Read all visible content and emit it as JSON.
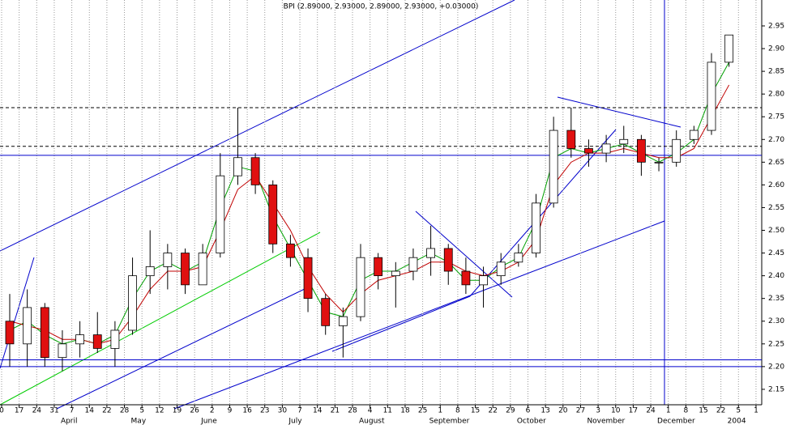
{
  "chart_data": {
    "type": "candlestick",
    "title": "BPI (2.89000, 2.93000, 2.89000, 2.93000, +0.03000)",
    "categories": [
      "0",
      "17",
      "24",
      "31",
      "7",
      "14",
      "22",
      "28",
      "5",
      "12",
      "19",
      "26",
      "2",
      "9",
      "16",
      "23",
      "30",
      "7",
      "14",
      "21",
      "28",
      "4",
      "11",
      "18",
      "25",
      "1",
      "8",
      "15",
      "22",
      "29",
      "6",
      "13",
      "20",
      "27",
      "3",
      "10",
      "17",
      "24",
      "1",
      "8",
      "15",
      "22",
      "5",
      "1"
    ],
    "month_labels": [
      null,
      null,
      null,
      "April",
      null,
      null,
      null,
      "May",
      null,
      null,
      null,
      "June",
      null,
      null,
      null,
      null,
      "July",
      null,
      null,
      null,
      "August",
      null,
      null,
      null,
      "September",
      null,
      null,
      null,
      null,
      "October",
      null,
      null,
      null,
      "November",
      null,
      null,
      null,
      "December",
      null,
      null,
      null,
      "2004",
      null,
      null
    ],
    "open": [
      2.3,
      2.25,
      2.33,
      2.22,
      2.25,
      2.27,
      2.24,
      2.28,
      2.4,
      2.42,
      2.45,
      2.38,
      2.45,
      2.62,
      2.66,
      2.6,
      2.47,
      2.44,
      2.35,
      2.29,
      2.31,
      2.44,
      2.4,
      2.41,
      2.44,
      2.46,
      2.41,
      2.38,
      2.4,
      2.43,
      2.45,
      2.56,
      2.72,
      2.68,
      2.67,
      2.69,
      2.7,
      2.65,
      2.65,
      2.7,
      2.72,
      2.87,
      null,
      null
    ],
    "high": [
      2.36,
      2.37,
      2.34,
      2.28,
      2.3,
      2.32,
      2.3,
      2.44,
      2.5,
      2.47,
      2.46,
      2.47,
      2.67,
      2.77,
      2.67,
      2.61,
      2.49,
      2.46,
      2.36,
      2.33,
      2.47,
      2.45,
      2.43,
      2.46,
      2.51,
      2.47,
      2.44,
      2.42,
      2.45,
      2.47,
      2.58,
      2.75,
      2.77,
      2.7,
      2.71,
      2.73,
      2.71,
      2.66,
      2.72,
      2.73,
      2.89,
      2.93,
      null,
      null
    ],
    "low": [
      2.2,
      2.2,
      2.2,
      2.19,
      2.22,
      2.23,
      2.2,
      2.27,
      2.36,
      2.37,
      2.36,
      2.38,
      2.44,
      2.6,
      2.58,
      2.45,
      2.42,
      2.32,
      2.27,
      2.22,
      2.3,
      2.37,
      2.33,
      2.39,
      2.4,
      2.38,
      2.36,
      2.33,
      2.38,
      2.42,
      2.44,
      2.55,
      2.66,
      2.64,
      2.65,
      2.67,
      2.62,
      2.63,
      2.64,
      2.69,
      2.71,
      2.86,
      null,
      null
    ],
    "close": [
      2.25,
      2.33,
      2.22,
      2.25,
      2.27,
      2.24,
      2.28,
      2.4,
      2.42,
      2.45,
      2.38,
      2.45,
      2.62,
      2.66,
      2.6,
      2.47,
      2.44,
      2.35,
      2.29,
      2.31,
      2.44,
      2.4,
      2.41,
      2.44,
      2.46,
      2.41,
      2.38,
      2.4,
      2.43,
      2.45,
      2.56,
      2.72,
      2.68,
      2.67,
      2.69,
      2.7,
      2.65,
      2.65,
      2.7,
      2.72,
      2.87,
      2.93,
      null,
      null
    ],
    "up_color": "#ffffff",
    "down_color": "#e01010",
    "series": [
      {
        "color": "#00a000",
        "values": [
          2.28,
          2.3,
          2.27,
          2.25,
          2.26,
          2.25,
          2.27,
          2.35,
          2.41,
          2.43,
          2.41,
          2.43,
          2.55,
          2.64,
          2.63,
          2.53,
          2.46,
          2.39,
          2.32,
          2.31,
          2.39,
          2.41,
          2.41,
          2.43,
          2.45,
          2.43,
          2.39,
          2.39,
          2.42,
          2.44,
          2.52,
          2.66,
          2.68,
          2.67,
          2.68,
          2.69,
          2.67,
          2.65,
          2.67,
          2.7,
          2.8,
          2.87,
          null,
          null
        ]
      },
      {
        "color": "#c00000",
        "values": [
          2.3,
          2.29,
          2.28,
          2.26,
          2.26,
          2.25,
          2.26,
          2.31,
          2.37,
          2.41,
          2.41,
          2.42,
          2.5,
          2.59,
          2.62,
          2.56,
          2.5,
          2.42,
          2.36,
          2.32,
          2.36,
          2.39,
          2.4,
          2.41,
          2.43,
          2.43,
          2.41,
          2.4,
          2.41,
          2.43,
          2.48,
          2.6,
          2.65,
          2.67,
          2.67,
          2.68,
          2.67,
          2.66,
          2.66,
          2.68,
          2.75,
          2.82,
          null,
          null
        ]
      }
    ],
    "hlines": [
      {
        "value": 2.77,
        "style": "dashed",
        "color": "#000000"
      },
      {
        "value": 2.685,
        "style": "dashed",
        "color": "#000000"
      },
      {
        "value": 2.665,
        "style": "solid",
        "color": "#0000cc"
      },
      {
        "value": 2.215,
        "style": "solid",
        "color": "#0000cc"
      },
      {
        "value": 2.2,
        "style": "solid",
        "color": "#0000cc"
      }
    ],
    "ylim": [
      2.116,
      3.007
    ],
    "yticks": [
      2.15,
      {
        "value": 2.2,
        "label": "2.20"
      },
      2.25,
      {
        "value": 2.3,
        "label": "2.30"
      },
      2.35,
      {
        "value": 2.4,
        "label": "2.40"
      },
      2.45,
      {
        "value": 2.5,
        "label": "2.50"
      },
      2.55,
      {
        "value": 2.6,
        "label": "2.60"
      },
      2.65,
      {
        "value": 2.7,
        "label": "2.70"
      },
      2.75,
      {
        "value": 2.8,
        "label": "2.80"
      },
      2.85,
      {
        "value": 2.9,
        "label": "2.90"
      },
      2.95
    ],
    "grid": true
  }
}
